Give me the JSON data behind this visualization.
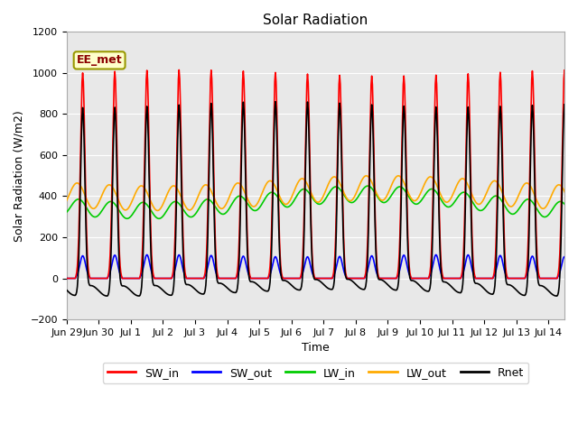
{
  "title": "Solar Radiation",
  "ylabel": "Solar Radiation (W/m2)",
  "xlabel": "Time",
  "ylim": [
    -200,
    1200
  ],
  "annotation": "EE_met",
  "background_color": "#ffffff",
  "plot_bg_color": "#e8e8e8",
  "grid_color": "#ffffff",
  "series": {
    "SW_in": {
      "color": "#ff0000",
      "lw": 1.2
    },
    "SW_out": {
      "color": "#0000ff",
      "lw": 1.2
    },
    "LW_in": {
      "color": "#00cc00",
      "lw": 1.2
    },
    "LW_out": {
      "color": "#ffaa00",
      "lw": 1.2
    },
    "Rnet": {
      "color": "#000000",
      "lw": 1.2
    }
  },
  "tick_labels": [
    "Jun 29",
    "Jun 30",
    "Jul 1",
    "Jul 2",
    "Jul 3",
    "Jul 4",
    "Jul 5",
    "Jul 6",
    "Jul 7",
    "Jul 8",
    "Jul 9",
    "Jul 10",
    "Jul 11",
    "Jul 12",
    "Jul 13",
    "Jul 14"
  ],
  "tick_positions": [
    0,
    1,
    2,
    3,
    4,
    5,
    6,
    7,
    8,
    9,
    10,
    11,
    12,
    13,
    14,
    15
  ],
  "yticks": [
    -200,
    0,
    200,
    400,
    600,
    800,
    1000,
    1200
  ]
}
